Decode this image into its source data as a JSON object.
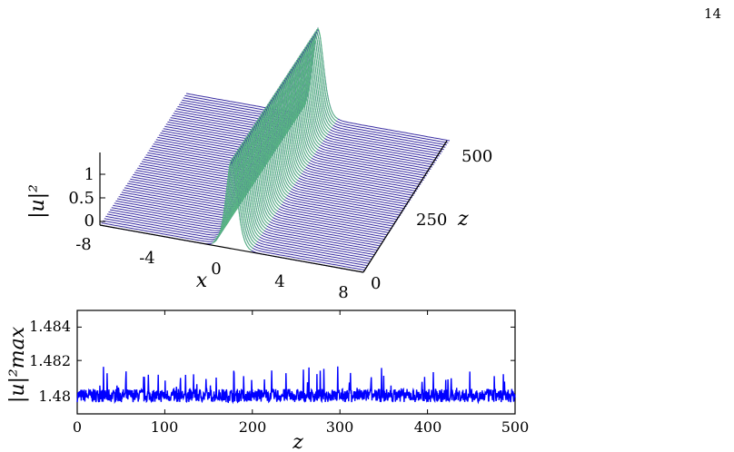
{
  "page_number": "14",
  "chart_data": [
    {
      "type": "surface-waterfall",
      "zlabel": "|u|²",
      "xlabel": "x",
      "ylabel": "z",
      "x_ticks": [
        "-8",
        "-4",
        "0",
        "4",
        "8"
      ],
      "y_ticks": [
        "0",
        "250",
        "500"
      ],
      "z_ticks": [
        "0",
        "0.5",
        "1"
      ],
      "xlim": [
        -8,
        8
      ],
      "ylim": [
        0,
        500
      ],
      "zlim": [
        0,
        1.5
      ],
      "peak_amplitude": 1.48,
      "colormap": [
        "#3b2fa3",
        "#2f6fe0",
        "#1fb7c8",
        "#5fd37c",
        "#f5f23a"
      ]
    },
    {
      "type": "line",
      "xlabel": "z",
      "ylabel": "|u|²max",
      "xlim": [
        0,
        500
      ],
      "ylim": [
        1.4788,
        1.485
      ],
      "x_ticks": [
        "0",
        "100",
        "200",
        "300",
        "400",
        "500"
      ],
      "y_ticks": [
        "1.48",
        "1.482",
        "1.484"
      ],
      "color": "#0000ff"
    }
  ]
}
